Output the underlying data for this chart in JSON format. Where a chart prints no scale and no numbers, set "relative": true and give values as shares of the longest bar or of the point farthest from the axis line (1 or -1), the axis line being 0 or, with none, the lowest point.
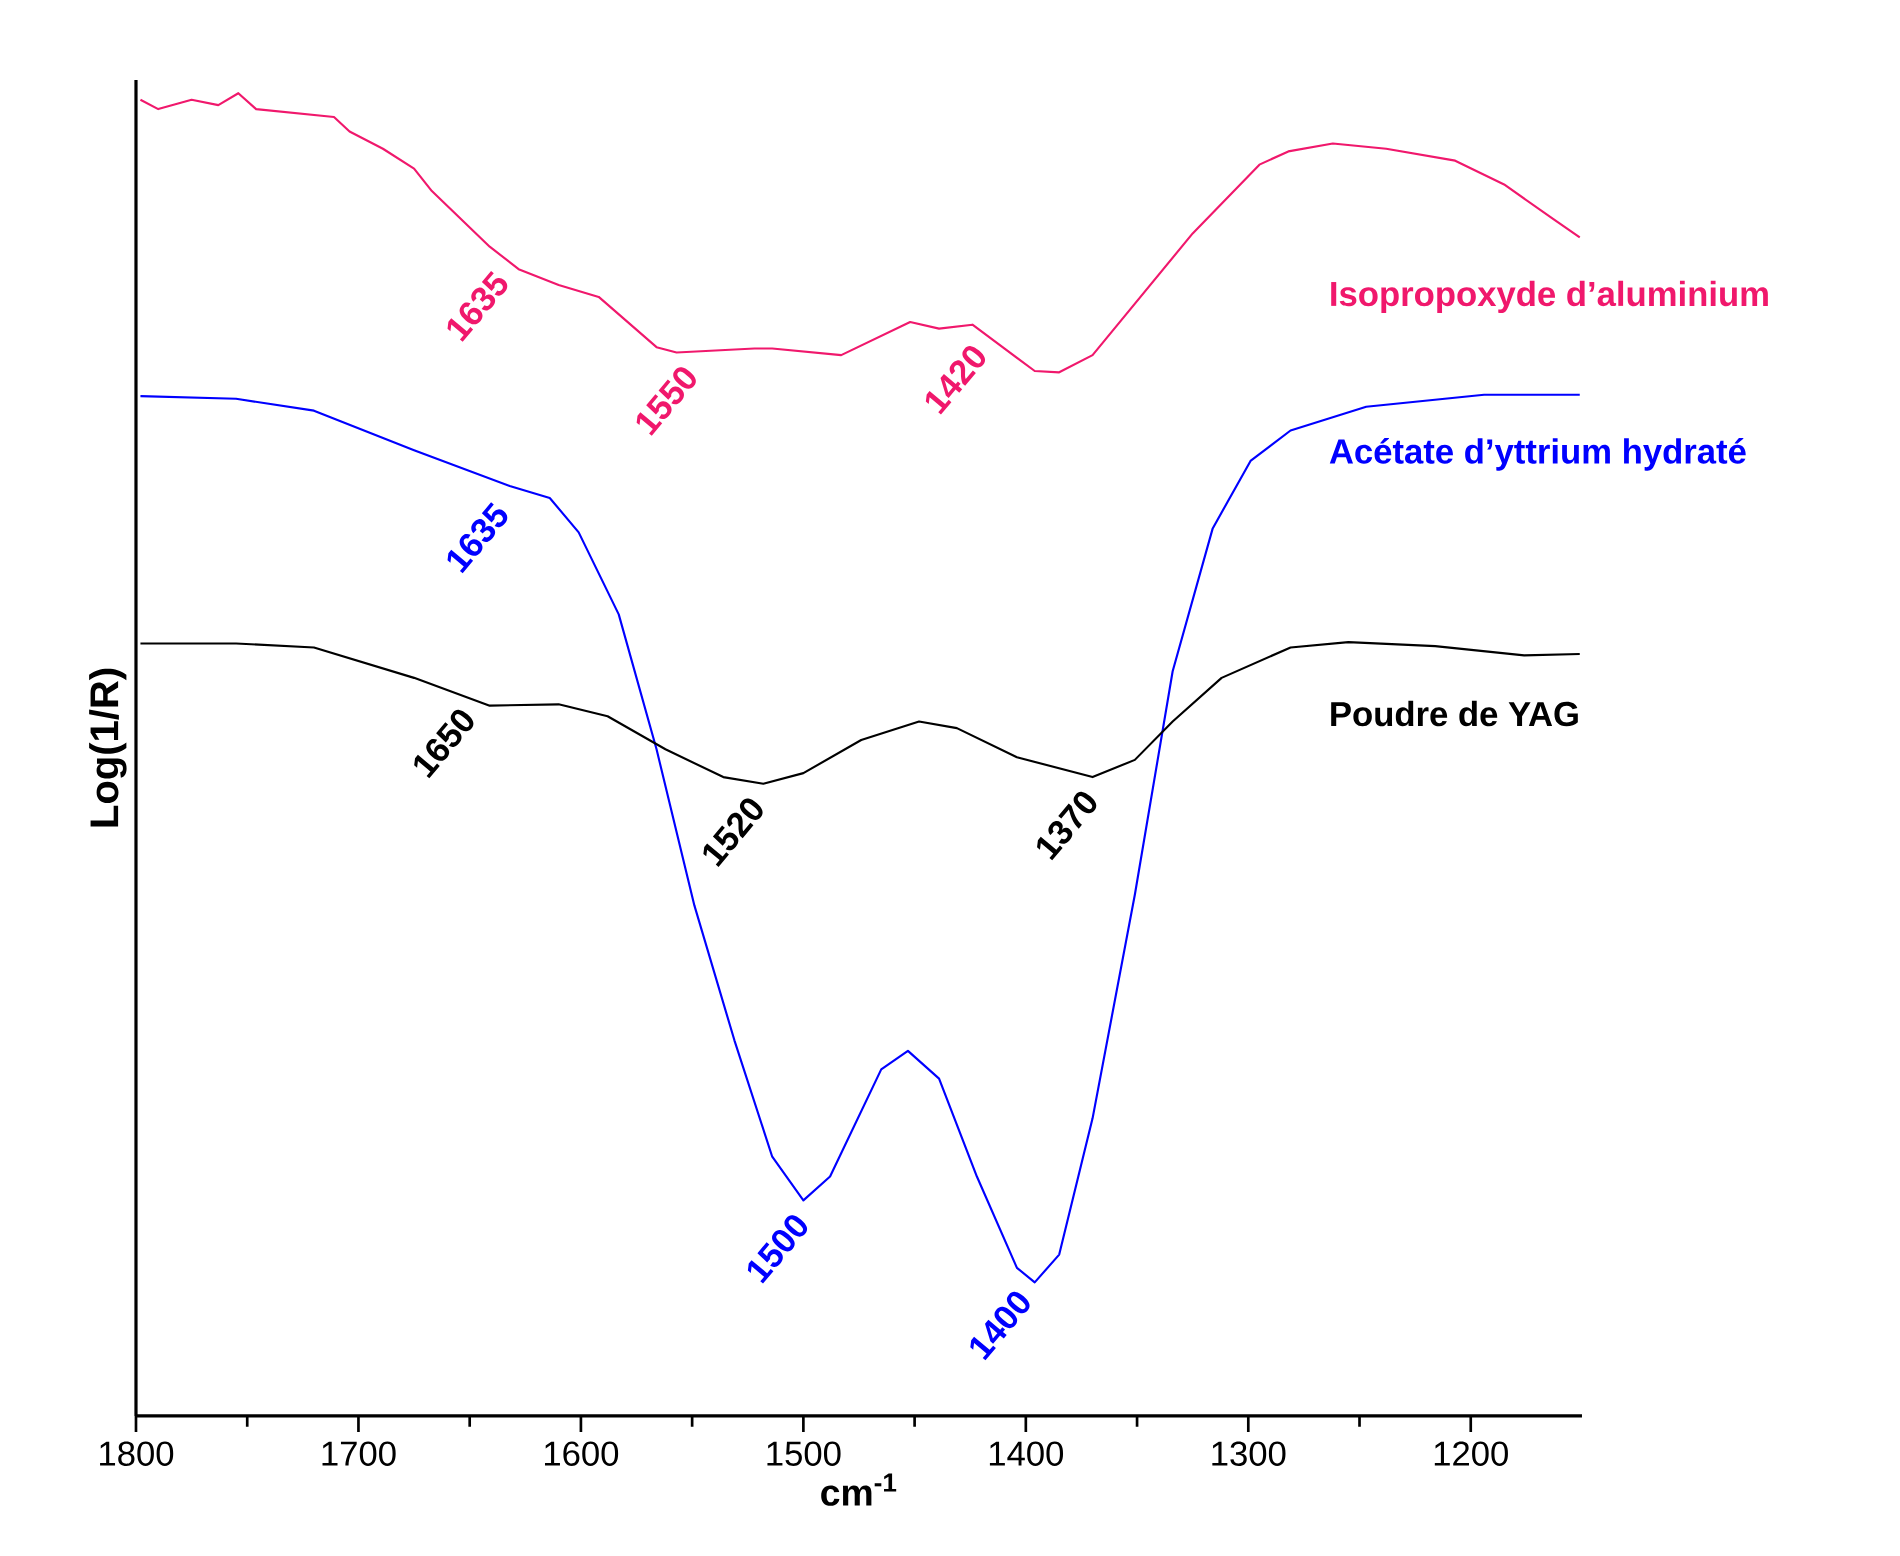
{
  "chart_data": {
    "type": "line",
    "relative": true,
    "xlabel": "cm$^{-1}$",
    "ylabel": "Log(1/R)",
    "xlim": [
      1800,
      1150
    ],
    "xticks": [
      1800,
      1700,
      1600,
      1500,
      1400,
      1300,
      1200
    ],
    "legend": false,
    "grid": false,
    "marker": "none",
    "line_style": "solid",
    "series": [
      {
        "name": "Isopropoxyde d’aluminium",
        "color": "#f0186c",
        "x": [
          1798,
          1790,
          1775,
          1763,
          1754,
          1746,
          1711,
          1704,
          1689,
          1675,
          1667,
          1641,
          1628,
          1610,
          1592,
          1566,
          1557,
          1522,
          1514,
          1483,
          1452,
          1439,
          1424,
          1396,
          1385,
          1370,
          1325,
          1295,
          1282,
          1262,
          1238,
          1207,
          1185,
          1163,
          1151
        ],
        "values": [
          0.995,
          0.988,
          0.995,
          0.991,
          1.0,
          0.988,
          0.982,
          0.971,
          0.958,
          0.943,
          0.926,
          0.884,
          0.867,
          0.855,
          0.846,
          0.808,
          0.804,
          0.807,
          0.807,
          0.802,
          0.827,
          0.822,
          0.825,
          0.79,
          0.789,
          0.802,
          0.894,
          0.946,
          0.956,
          0.962,
          0.958,
          0.949,
          0.931,
          0.905,
          0.891
        ]
      },
      {
        "name": "Acétate d’yttrium hydraté",
        "color": "#0000ff",
        "x": [
          1798,
          1755,
          1720,
          1675,
          1632,
          1614,
          1601,
          1583,
          1566,
          1549,
          1531,
          1514,
          1500,
          1488,
          1465,
          1453,
          1439,
          1422,
          1404,
          1396,
          1385,
          1370,
          1351,
          1334,
          1316,
          1299,
          1281,
          1247,
          1194,
          1151
        ],
        "values": [
          0.771,
          0.769,
          0.76,
          0.73,
          0.703,
          0.694,
          0.668,
          0.606,
          0.504,
          0.386,
          0.284,
          0.196,
          0.163,
          0.181,
          0.262,
          0.276,
          0.255,
          0.181,
          0.112,
          0.101,
          0.122,
          0.225,
          0.394,
          0.563,
          0.671,
          0.722,
          0.745,
          0.763,
          0.772,
          0.772
        ]
      },
      {
        "name": "Poudre de YAG",
        "color": "#000000",
        "x": [
          1798,
          1755,
          1720,
          1675,
          1641,
          1610,
          1588,
          1562,
          1536,
          1518,
          1500,
          1474,
          1448,
          1431,
          1404,
          1370,
          1351,
          1334,
          1312,
          1281,
          1255,
          1216,
          1176,
          1151
        ],
        "values": [
          0.584,
          0.584,
          0.581,
          0.558,
          0.537,
          0.538,
          0.529,
          0.504,
          0.483,
          0.478,
          0.486,
          0.511,
          0.525,
          0.52,
          0.498,
          0.483,
          0.496,
          0.525,
          0.558,
          0.581,
          0.585,
          0.582,
          0.575,
          0.576
        ]
      }
    ],
    "annotations": [
      {
        "text": "1635",
        "x": 1635,
        "y": 0.875
      },
      {
        "text": "1550",
        "x": 1550,
        "y": 0.804
      },
      {
        "text": "1420",
        "x": 1420,
        "y": 0.82
      },
      {
        "text": "1635",
        "x": 1635,
        "y": 0.7
      },
      {
        "text": "1500",
        "x": 1500,
        "y": 0.163
      },
      {
        "text": "1400",
        "x": 1400,
        "y": 0.105
      },
      {
        "text": "1650",
        "x": 1650,
        "y": 0.545
      },
      {
        "text": "1520",
        "x": 1520,
        "y": 0.478
      },
      {
        "text": "1370",
        "x": 1370,
        "y": 0.483
      }
    ]
  }
}
